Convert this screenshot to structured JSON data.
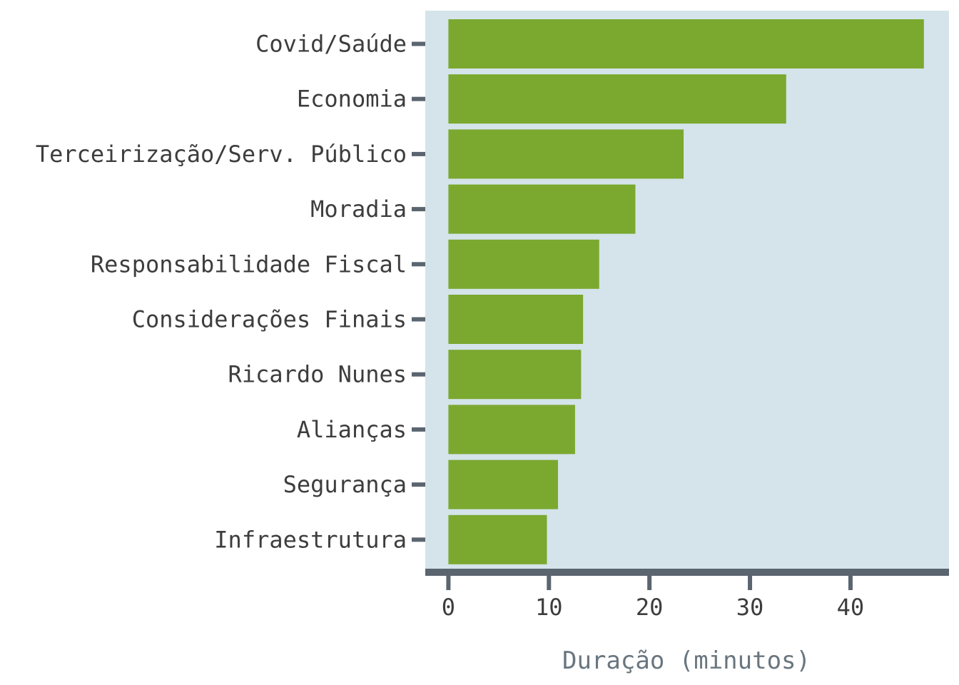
{
  "chart_data": {
    "type": "bar",
    "orientation": "horizontal",
    "categories": [
      "Covid/Saúde",
      "Economia",
      "Terceirização/Serv. Público",
      "Moradia",
      "Responsabilidade Fiscal",
      "Considerações Finais",
      "Ricardo Nunes",
      "Alianças",
      "Segurança",
      "Infraestrutura"
    ],
    "values": [
      47.3,
      33.6,
      23.4,
      18.6,
      15.0,
      13.4,
      13.2,
      12.6,
      10.9,
      9.8
    ],
    "xlabel": "Duração (minutos)",
    "ylabel": "",
    "xlim": [
      -2.3,
      49.8
    ],
    "xticks": [
      0,
      10,
      20,
      30,
      40
    ],
    "grid": false,
    "colors": {
      "bar": "#7ba82f",
      "panel": "#d4e4ea",
      "axis": "#5a6570",
      "title": "#69767f"
    }
  }
}
